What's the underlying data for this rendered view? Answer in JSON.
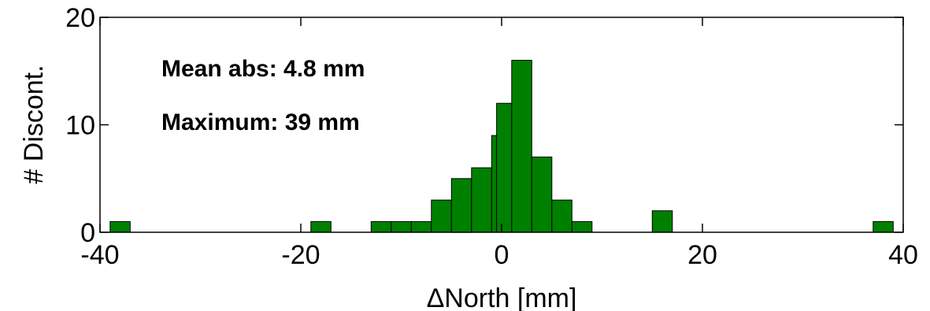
{
  "chart_data": {
    "type": "bar",
    "xlabel": "ΔNorth [mm]",
    "ylabel": "# Discont.",
    "xlim": [
      -40,
      40
    ],
    "ylim": [
      0,
      20
    ],
    "xticks": [
      "-40",
      "-20",
      "0",
      "20",
      "40"
    ],
    "yticks": [
      "0",
      "10",
      "20"
    ],
    "bin_width": 2,
    "bar_color": "#008000",
    "grid": false,
    "bins": [
      {
        "center": -38,
        "count": 1
      },
      {
        "center": -18,
        "count": 1
      },
      {
        "center": -12,
        "count": 1
      },
      {
        "center": -10,
        "count": 1
      },
      {
        "center": -8,
        "count": 1
      },
      {
        "center": -6,
        "count": 3
      },
      {
        "center": -4,
        "count": 5
      },
      {
        "center": -2,
        "count": 6
      },
      {
        "center": 0,
        "count": 9
      },
      {
        "center": 0.5,
        "count": 12
      },
      {
        "center": 2,
        "count": 16
      },
      {
        "center": 4,
        "count": 7
      },
      {
        "center": 6,
        "count": 3
      },
      {
        "center": 8,
        "count": 1
      },
      {
        "center": 16,
        "count": 2
      },
      {
        "center": 38,
        "count": 1
      }
    ],
    "annotations": [
      "Mean abs: 4.8 mm",
      "Maximum: 39 mm"
    ]
  }
}
